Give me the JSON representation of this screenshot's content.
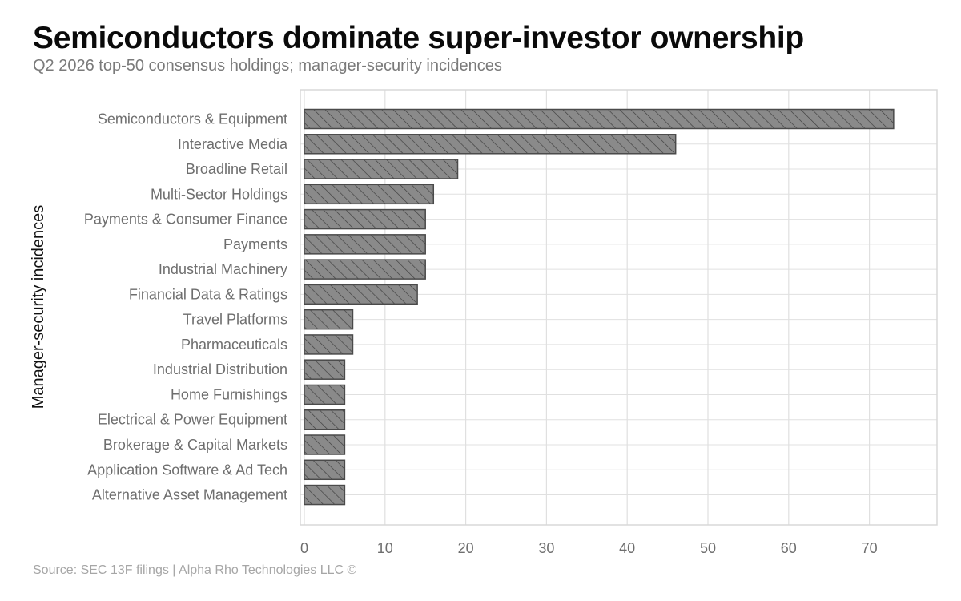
{
  "title": "Semiconductors dominate super-investor ownership",
  "subtitle": "Q2 2026 top-50 consensus holdings; manager-security incidences",
  "source": "Source: SEC 13F filings | Alpha Rho Technologies LLC ©",
  "colors": {
    "bar_fill": "#8a8a8a",
    "bar_stroke": "#4a4a4a",
    "hatch": "#3c3c3c",
    "grid": "#e0e0e0",
    "frame": "#d8d8d8"
  },
  "chart_data": {
    "type": "bar",
    "orientation": "horizontal",
    "categories": [
      "Semiconductors & Equipment",
      "Interactive Media",
      "Broadline Retail",
      "Multi-Sector Holdings",
      "Payments & Consumer Finance",
      "Payments",
      "Industrial Machinery",
      "Financial Data & Ratings",
      "Travel Platforms",
      "Pharmaceuticals",
      "Industrial Distribution",
      "Home Furnishings",
      "Electrical & Power Equipment",
      "Brokerage & Capital Markets",
      "Application Software & Ad Tech",
      "Alternative Asset Management"
    ],
    "values": [
      73,
      46,
      19,
      16,
      15,
      15,
      15,
      14,
      6,
      6,
      5,
      5,
      5,
      5,
      5,
      5
    ],
    "ylabel": "Manager-security incidences",
    "xlabel": "",
    "xlim": [
      0,
      78
    ],
    "xticks": [
      0,
      10,
      20,
      30,
      40,
      50,
      60,
      70
    ],
    "grid": true,
    "bar_pattern": "diagonal-hatch"
  }
}
